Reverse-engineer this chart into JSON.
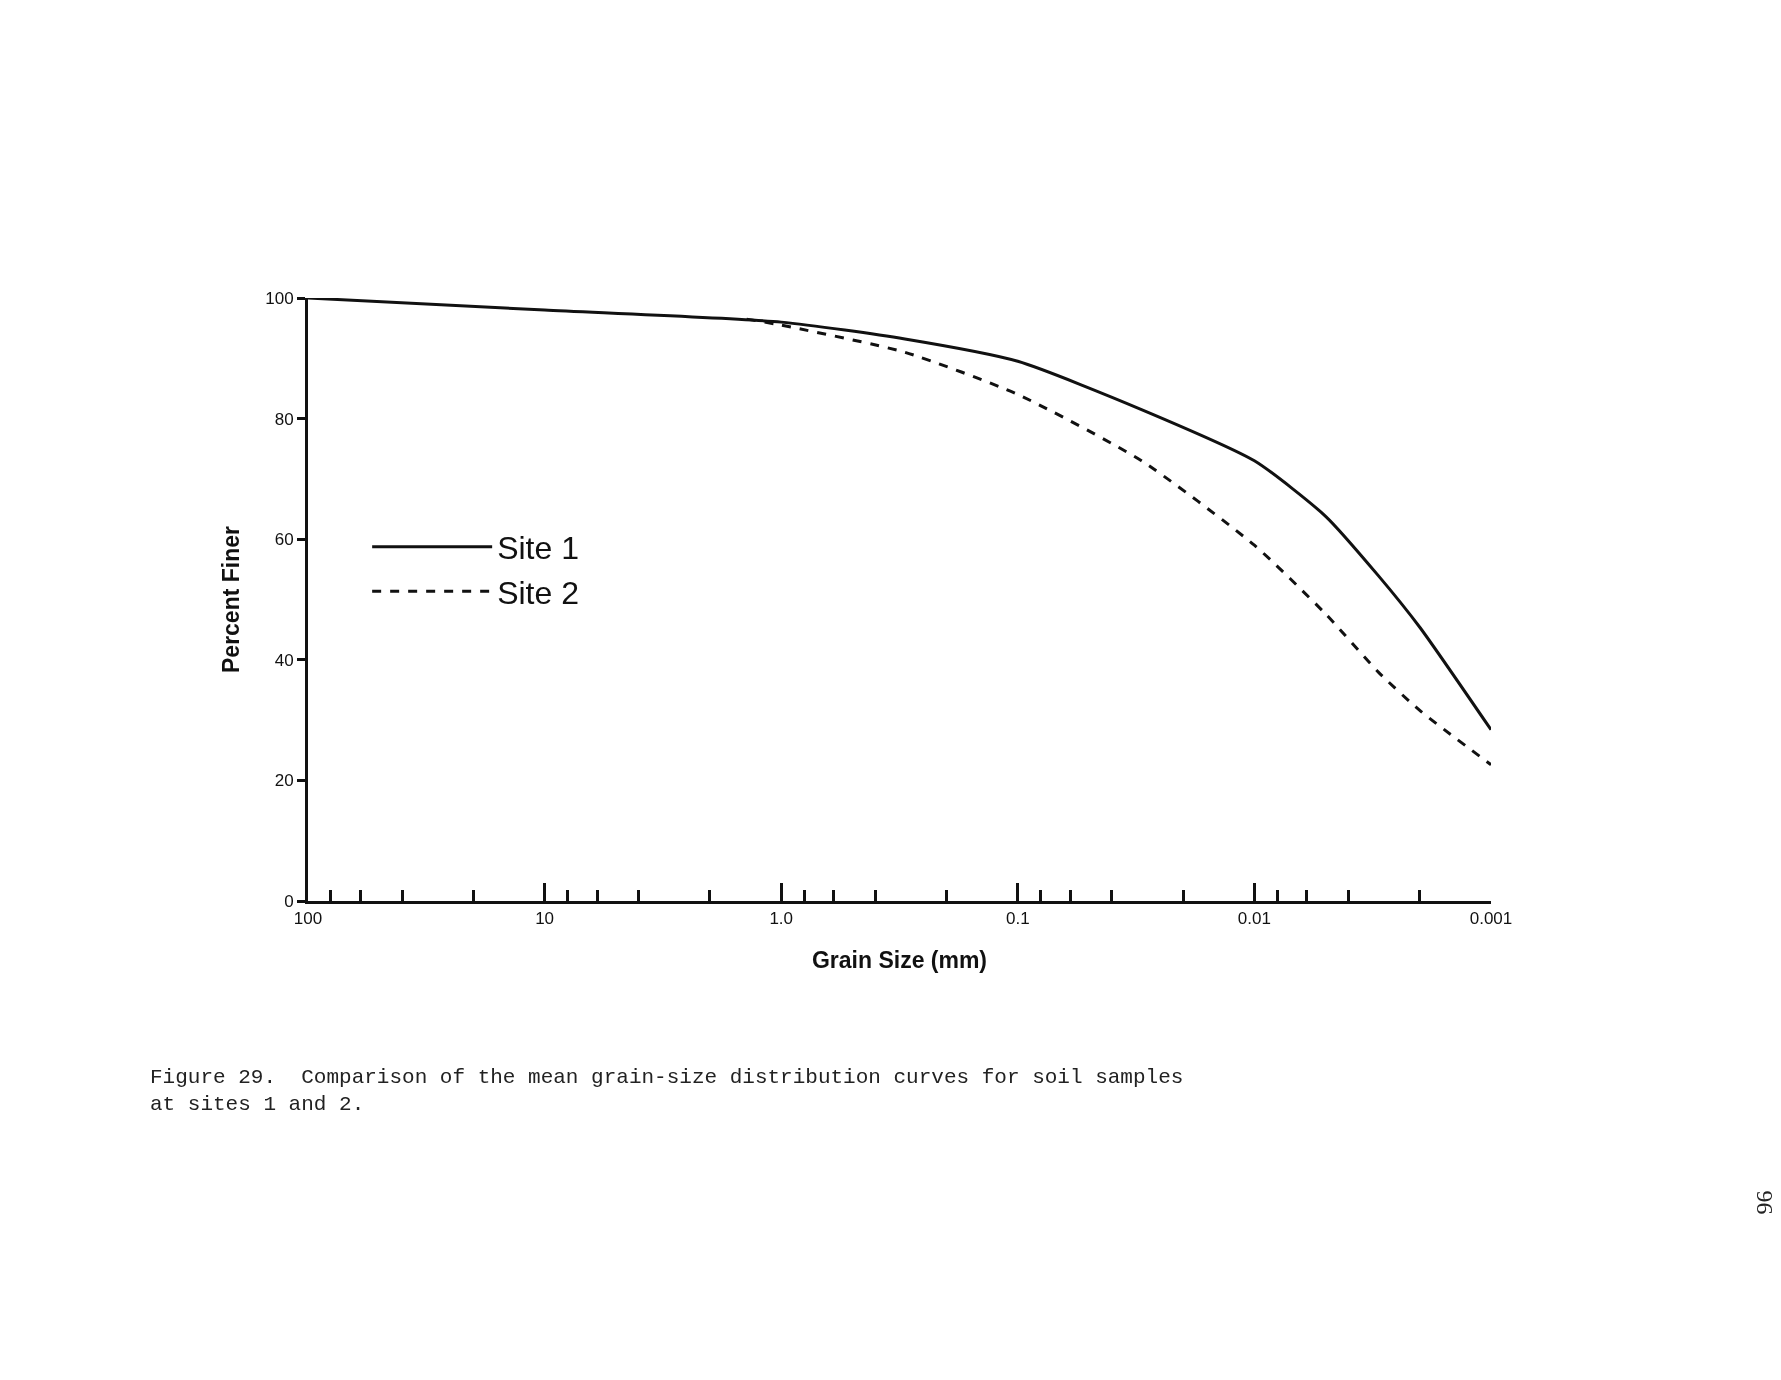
{
  "chart_data": {
    "type": "line",
    "xlabel": "Grain Size (mm)",
    "ylabel": "Percent Finer",
    "log": "x",
    "xlim": [
      100,
      0.001
    ],
    "ylim": [
      0,
      100
    ],
    "xticks": [
      {
        "value": 100,
        "label": "100"
      },
      {
        "value": 80,
        "label": null
      },
      {
        "value": 60,
        "label": null
      },
      {
        "value": 40,
        "label": null
      },
      {
        "value": 20,
        "label": null
      },
      {
        "value": 10,
        "label": "10"
      },
      {
        "value": 8,
        "label": null
      },
      {
        "value": 6,
        "label": null
      },
      {
        "value": 4,
        "label": null
      },
      {
        "value": 2,
        "label": null
      },
      {
        "value": 1,
        "label": "1.0"
      },
      {
        "value": 0.8,
        "label": null
      },
      {
        "value": 0.6,
        "label": null
      },
      {
        "value": 0.4,
        "label": null
      },
      {
        "value": 0.2,
        "label": null
      },
      {
        "value": 0.1,
        "label": "0.1"
      },
      {
        "value": 0.08,
        "label": null
      },
      {
        "value": 0.06,
        "label": null
      },
      {
        "value": 0.04,
        "label": null
      },
      {
        "value": 0.02,
        "label": null
      },
      {
        "value": 0.01,
        "label": "0.01"
      },
      {
        "value": 0.008,
        "label": null
      },
      {
        "value": 0.006,
        "label": null
      },
      {
        "value": 0.004,
        "label": null
      },
      {
        "value": 0.002,
        "label": null
      },
      {
        "value": 0.001,
        "label": "0.001"
      }
    ],
    "yticks": [
      0,
      20,
      40,
      60,
      80,
      100
    ],
    "legend": "left",
    "marker": "none",
    "series": [
      {
        "name": "Site 1",
        "color": "#111111",
        "line_style": "solid",
        "x": [
          100,
          10,
          1.0,
          0.3,
          0.1,
          0.03,
          0.01,
          0.005,
          0.003,
          0.002,
          0.001
        ],
        "values": [
          100,
          98,
          96,
          93.2,
          89.5,
          81.5,
          73,
          63.8,
          54,
          45.4,
          28.4
        ]
      },
      {
        "name": "Site 2",
        "color": "#111111",
        "line_style": "dashed",
        "x": [
          1.4,
          1.0,
          0.3,
          0.1,
          0.03,
          0.01,
          0.005,
          0.003,
          0.002,
          0.001
        ],
        "values": [
          96.5,
          95.5,
          91,
          84,
          73,
          59,
          47.6,
          38,
          31.6,
          22.6
        ]
      }
    ],
    "annotations": [
      "Figure 29.  Comparison of the mean grain-size distribution curves for soil samples\nat sites 1 and 2.",
      "96"
    ]
  }
}
